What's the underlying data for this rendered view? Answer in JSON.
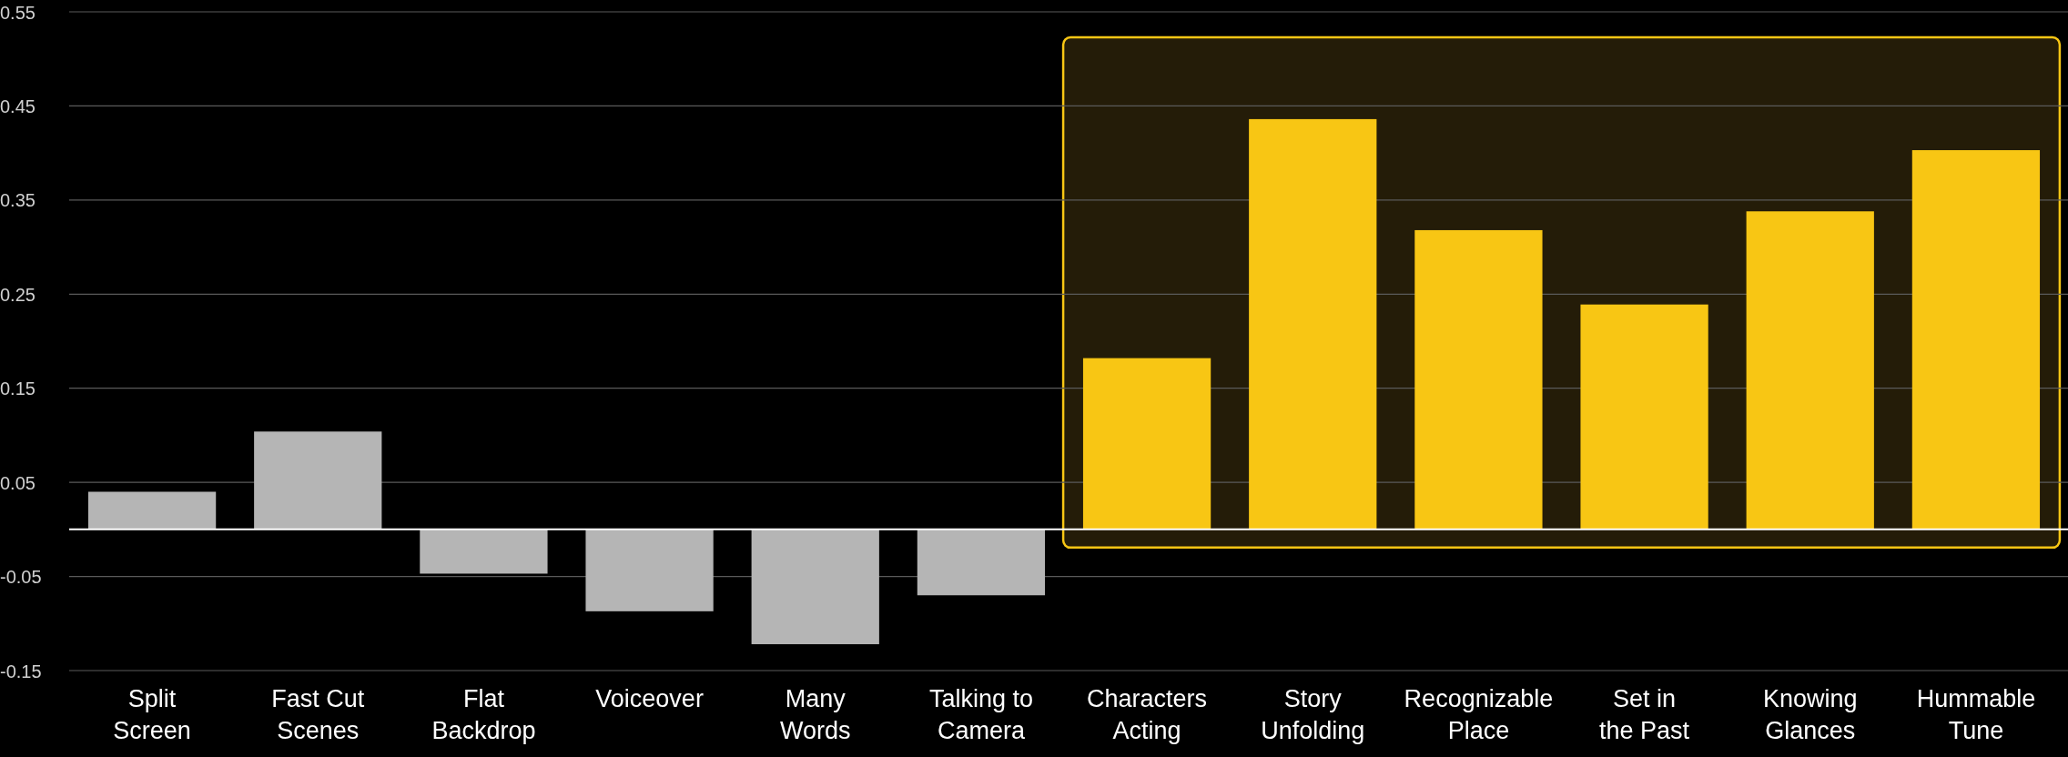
{
  "chart_data": {
    "type": "bar",
    "categories": [
      "Split\nScreen",
      "Fast Cut\nScenes",
      "Flat\nBackdrop",
      "Voiceover",
      "Many\nWords",
      "Talking to\nCamera",
      "Characters\nActing",
      "Story\nUnfolding",
      "Recognizable\nPlace",
      "Set in\nthe Past",
      "Knowing\nGlances",
      "Hummable\nTune"
    ],
    "values": [
      0.04,
      0.104,
      -0.047,
      -0.087,
      -0.122,
      -0.07,
      0.182,
      0.436,
      0.318,
      0.239,
      0.338,
      0.403
    ],
    "colors": [
      "#b5b5b5",
      "#b5b5b5",
      "#b5b5b5",
      "#b5b5b5",
      "#b5b5b5",
      "#b5b5b5",
      "#f8c614",
      "#f8c614",
      "#f8c614",
      "#f8c614",
      "#f8c614",
      "#f8c614"
    ],
    "ylim": [
      -0.15,
      0.55
    ],
    "yticks": [
      -0.15,
      -0.05,
      0.05,
      0.15,
      0.25,
      0.35,
      0.45,
      0.55
    ],
    "grid": "y",
    "bands": [
      {
        "axis": "x",
        "from": "Characters\nActing",
        "to": "Hummable\nTune",
        "color": "#241c08"
      }
    ]
  }
}
